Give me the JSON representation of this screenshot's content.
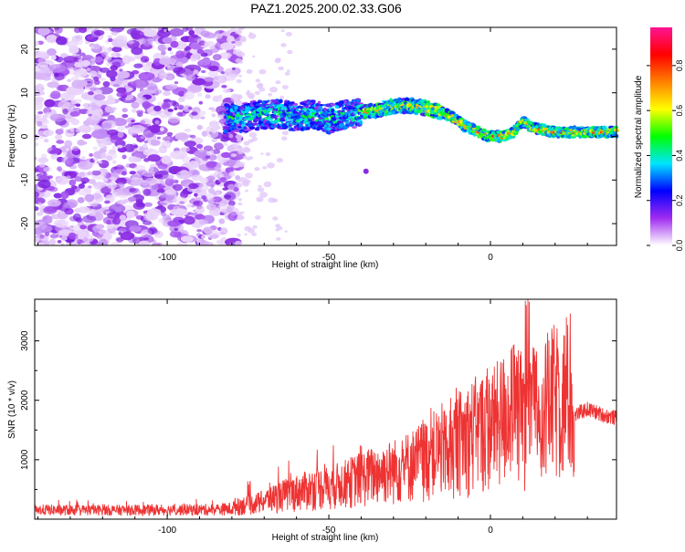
{
  "title": "PAZ1.2025.200.02.33.G06",
  "chart_data": [
    {
      "type": "heatmap",
      "title": "PAZ1.2025.200.02.33.G06",
      "xlabel": "Height of straight line (km)",
      "ylabel": "Frequency (Hz)",
      "xlim": [
        -141,
        39
      ],
      "ylim": [
        -25,
        25
      ],
      "xticks": [
        -100,
        -50,
        0
      ],
      "yticks": [
        -20,
        -10,
        0,
        10,
        20
      ],
      "ridge": {
        "x": [
          -82,
          -75,
          -70,
          -65,
          -60,
          -55,
          -50,
          -45,
          -40,
          -35,
          -30,
          -25,
          -20,
          -15,
          -12,
          -10,
          -8,
          -5,
          -2,
          0,
          3,
          6,
          8,
          10,
          13,
          16,
          20,
          25,
          30,
          35,
          39
        ],
        "y": [
          4,
          4.5,
          5,
          5,
          4.5,
          5,
          4,
          5,
          5.5,
          6,
          7,
          7,
          6.5,
          5.5,
          4.5,
          3.5,
          2.5,
          1.5,
          0.5,
          0,
          0,
          0.5,
          1.5,
          3.5,
          2,
          1.5,
          1,
          1,
          1,
          1,
          1
        ]
      },
      "colorbar": {
        "label": "Normalized spectral amplitude",
        "min": 0,
        "max": 0.97,
        "ticks": [
          0.0,
          0.2,
          0.4,
          0.6,
          0.8
        ],
        "tick_labels": [
          "0.0",
          "0.2",
          "0.4",
          "0.6",
          "0.8"
        ],
        "colors": [
          "#ffffff",
          "#a02cf0",
          "#0000ff",
          "#00e5ff",
          "#00ff00",
          "#ffff00",
          "#ff8000",
          "#ff0000",
          "#ff1493"
        ]
      }
    },
    {
      "type": "line",
      "xlabel": "Height of straight line (km)",
      "ylabel": "SNR (10 * v/v)",
      "xlim": [
        -141,
        39
      ],
      "ylim": [
        0,
        3700
      ],
      "xticks": [
        -100,
        -50,
        0
      ],
      "yticks": [
        1000,
        2000,
        3000
      ],
      "color": "#ee3333",
      "envelope": {
        "x": [
          -141,
          -120,
          -100,
          -85,
          -80,
          -77,
          -75,
          -70,
          -65,
          -60,
          -55,
          -50,
          -45,
          -40,
          -35,
          -30,
          -25,
          -20,
          -15,
          -10,
          -5,
          0,
          2,
          5,
          8,
          10,
          12,
          15,
          20,
          25,
          26,
          30,
          35,
          39
        ],
        "y": [
          130,
          120,
          130,
          140,
          170,
          400,
          380,
          500,
          650,
          750,
          850,
          900,
          1000,
          1150,
          1250,
          1350,
          1500,
          1700,
          1950,
          2150,
          2400,
          2550,
          2650,
          2900,
          3000,
          2800,
          2900,
          3000,
          3300,
          3350,
          1750,
          1850,
          1750,
          1700
        ]
      }
    }
  ]
}
